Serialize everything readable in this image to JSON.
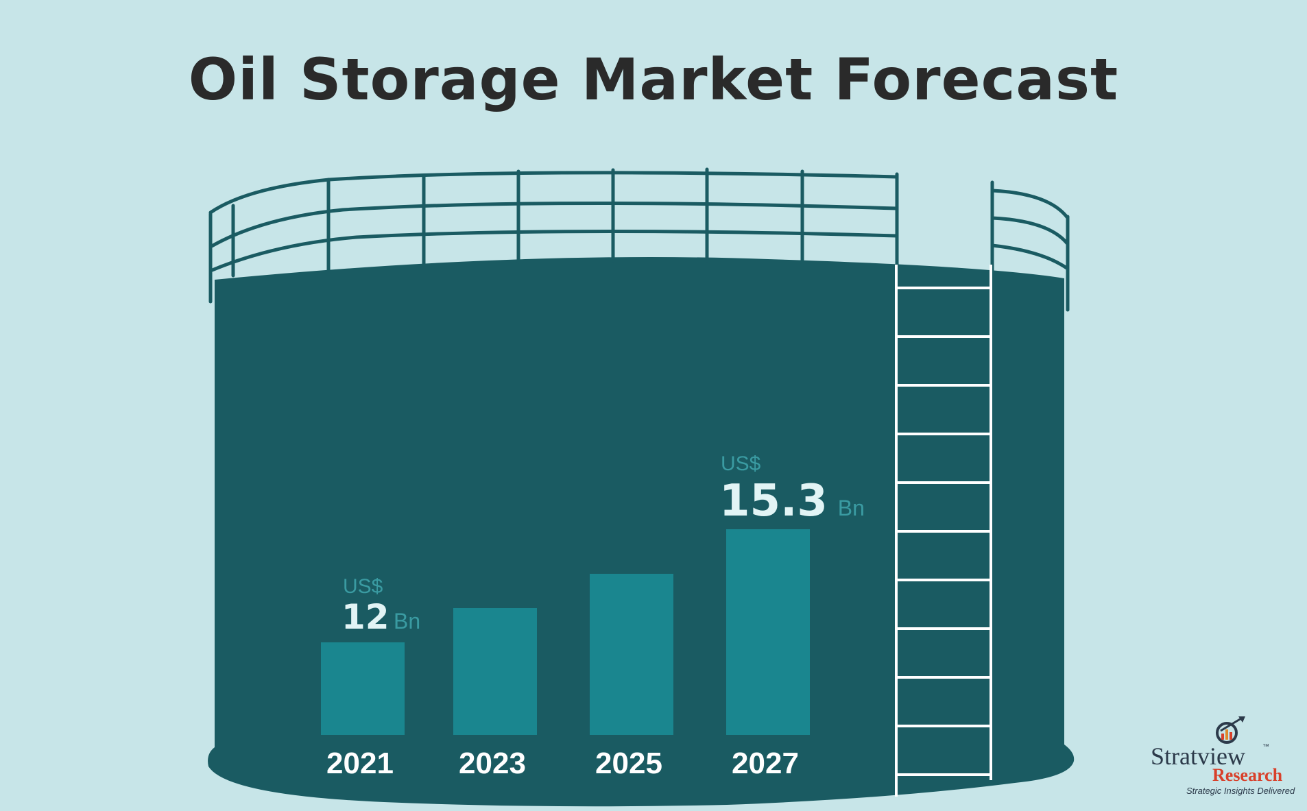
{
  "chart_data": {
    "type": "bar",
    "title": "Oil Storage Market Forecast",
    "categories": [
      "2021",
      "2023",
      "2025",
      "2027"
    ],
    "values": [
      12,
      13.0,
      14.0,
      15.3
    ],
    "currency": "US$",
    "unit": "Bn",
    "labeled_values": {
      "2021": "12",
      "2027": "15.3"
    },
    "xlabel": "",
    "ylabel": "",
    "grid": false,
    "legend": "none",
    "colors": {
      "background": "#c7e5e8",
      "tank": "#1a5b62",
      "bar": "#1a868f",
      "label_accent": "#3a9ba2",
      "ladder": "#ffffff",
      "title": "#2a2a2a"
    }
  },
  "logo": {
    "name": "Stratview",
    "research": "Research",
    "trademark": "™",
    "tagline": "Strategic Insights Delivered",
    "icon": "magnifier-chart-icon"
  }
}
